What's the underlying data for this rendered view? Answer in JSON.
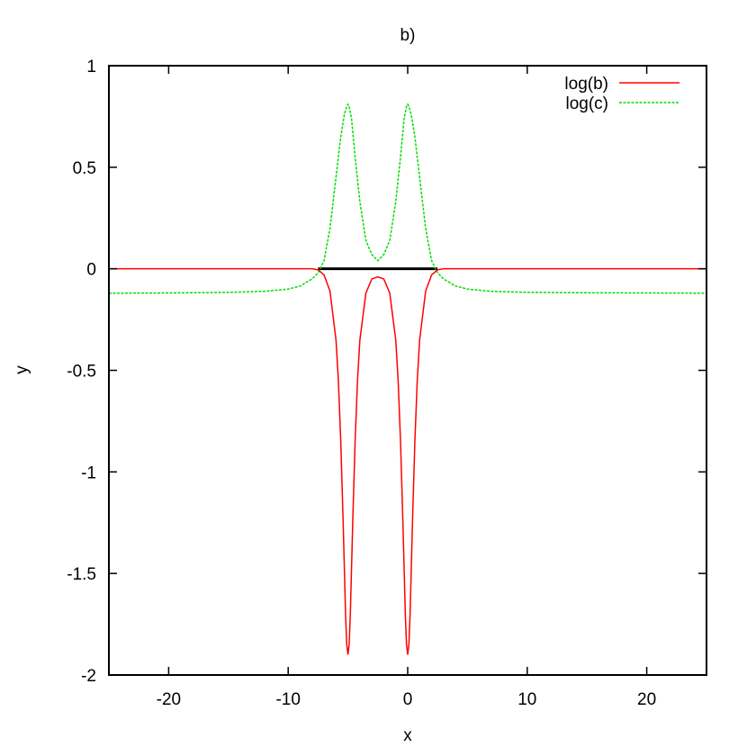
{
  "chart_data": {
    "type": "line",
    "title": "b)",
    "xlabel": "x",
    "ylabel": "y",
    "xlim": [
      -25,
      25
    ],
    "ylim": [
      -2,
      1
    ],
    "xticks": [
      -20,
      -10,
      0,
      10,
      20
    ],
    "yticks": [
      1,
      0.5,
      0,
      -0.5,
      -1,
      -1.5,
      -2
    ],
    "xtick_labels": [
      "-20",
      "-10",
      "0",
      "10",
      "20"
    ],
    "ytick_labels": [
      "1",
      "0.5",
      "0",
      "-0.5",
      "-1",
      "-1.5",
      "-2"
    ],
    "grid": false,
    "legend_position": "top-right",
    "series": [
      {
        "name": "log(b)",
        "color": "#ff0000",
        "style": "solid",
        "x": [
          -25,
          -15,
          -10,
          -8,
          -7.5,
          -7,
          -6.5,
          -6,
          -5.8,
          -5.6,
          -5.4,
          -5.2,
          -5.1,
          -5,
          -4.9,
          -4.8,
          -4.6,
          -4.4,
          -4.2,
          -4,
          -3.5,
          -3,
          -2.5,
          -2,
          -1.5,
          -1,
          -0.8,
          -0.6,
          -0.4,
          -0.2,
          -0.1,
          0,
          0.1,
          0.2,
          0.4,
          0.6,
          0.8,
          1,
          1.5,
          2,
          2.5,
          3,
          5,
          10,
          15,
          25
        ],
        "y": [
          0,
          0,
          0,
          0,
          -0.005,
          -0.03,
          -0.11,
          -0.35,
          -0.55,
          -0.85,
          -1.25,
          -1.7,
          -1.85,
          -1.9,
          -1.85,
          -1.7,
          -1.25,
          -0.85,
          -0.55,
          -0.35,
          -0.12,
          -0.05,
          -0.04,
          -0.05,
          -0.12,
          -0.35,
          -0.55,
          -0.85,
          -1.25,
          -1.7,
          -1.85,
          -1.9,
          -1.85,
          -1.7,
          -1.25,
          -0.85,
          -0.55,
          -0.35,
          -0.11,
          -0.03,
          -0.005,
          0,
          0,
          0,
          0,
          0
        ]
      },
      {
        "name": "log(c)",
        "color": "#00dd00",
        "style": "dashed",
        "x": [
          -25,
          -20,
          -15,
          -12,
          -10,
          -9,
          -8,
          -7.5,
          -7,
          -6.5,
          -6,
          -5.6,
          -5.3,
          -5.1,
          -5,
          -4.9,
          -4.7,
          -4.4,
          -4,
          -3.5,
          -3,
          -2.5,
          -2,
          -1.5,
          -1,
          -0.6,
          -0.3,
          -0.1,
          0,
          0.1,
          0.3,
          0.6,
          1,
          1.5,
          2,
          2.5,
          3,
          4,
          5,
          7,
          10,
          15,
          20,
          25
        ],
        "y": [
          -0.12,
          -0.119,
          -0.116,
          -0.111,
          -0.1,
          -0.085,
          -0.05,
          -0.02,
          0.04,
          0.2,
          0.45,
          0.65,
          0.76,
          0.8,
          0.81,
          0.8,
          0.74,
          0.55,
          0.33,
          0.14,
          0.07,
          0.04,
          0.07,
          0.14,
          0.33,
          0.55,
          0.74,
          0.8,
          0.81,
          0.8,
          0.76,
          0.65,
          0.45,
          0.2,
          0.04,
          -0.02,
          -0.05,
          -0.085,
          -0.1,
          -0.111,
          -0.116,
          -0.118,
          -0.119,
          -0.12
        ]
      },
      {
        "color": "#000000",
        "style": "solid",
        "x": [
          -7.5,
          2.5
        ],
        "y": [
          0,
          0
        ]
      }
    ]
  }
}
